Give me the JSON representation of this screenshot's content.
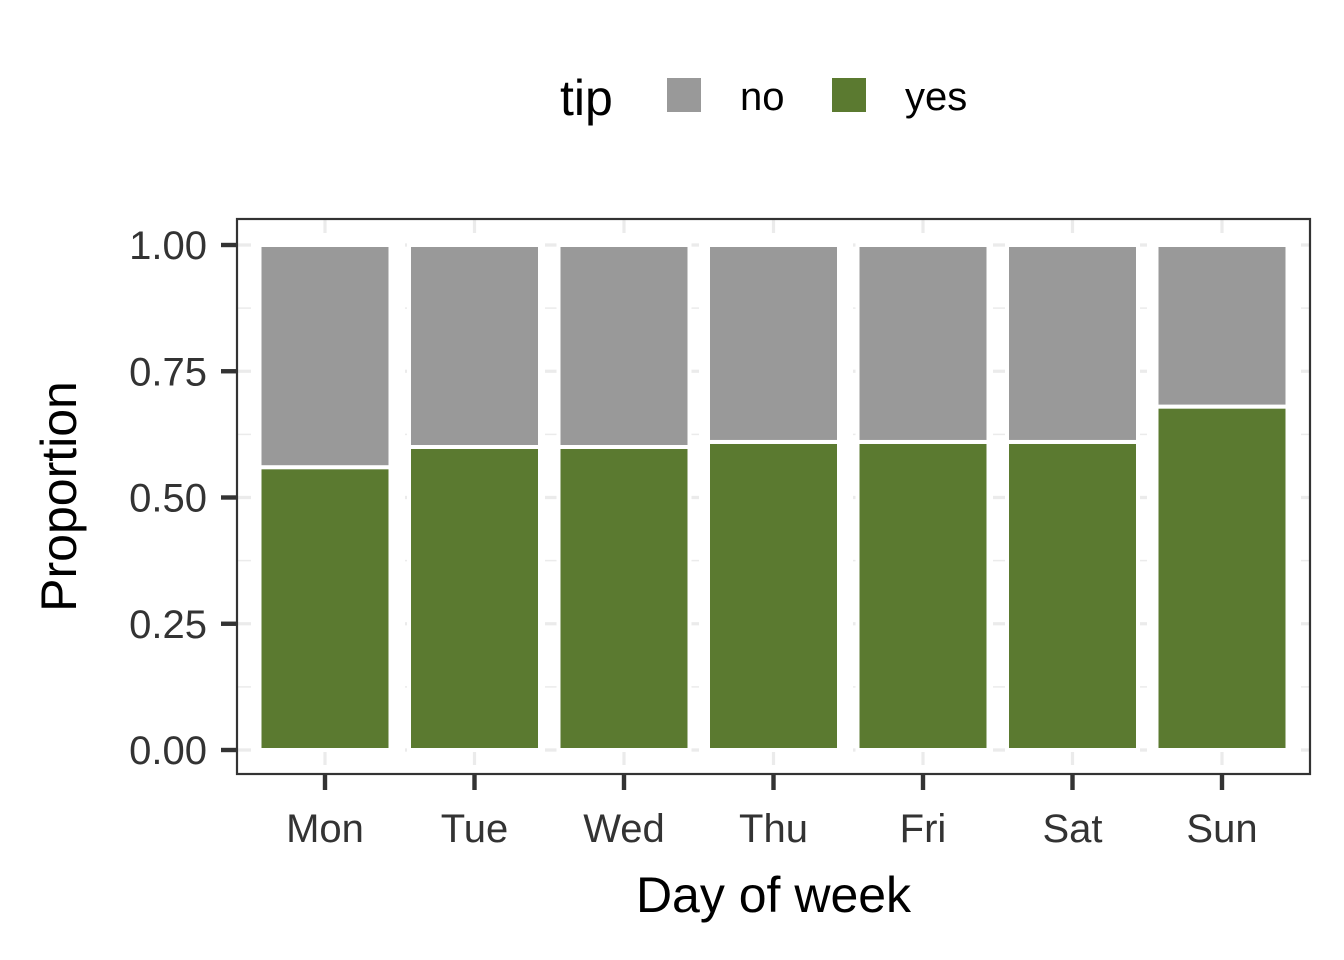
{
  "chart_data": {
    "type": "bar",
    "stacked": true,
    "categories": [
      "Mon",
      "Tue",
      "Wed",
      "Thu",
      "Fri",
      "Sat",
      "Sun"
    ],
    "series": [
      {
        "name": "no",
        "values": [
          0.44,
          0.4,
          0.4,
          0.39,
          0.39,
          0.39,
          0.32
        ]
      },
      {
        "name": "yes",
        "values": [
          0.56,
          0.6,
          0.6,
          0.61,
          0.61,
          0.61,
          0.68
        ]
      }
    ],
    "colors": {
      "no": "#999999",
      "yes": "#5b7a30"
    },
    "xlabel": "Day of week",
    "ylabel": "Proportion",
    "ylim": [
      0,
      1
    ],
    "yticks": [
      "0.00",
      "0.25",
      "0.50",
      "0.75",
      "1.00"
    ],
    "legend": {
      "title": "tip",
      "position": "top",
      "entries": [
        "no",
        "yes"
      ]
    },
    "grid": true
  }
}
